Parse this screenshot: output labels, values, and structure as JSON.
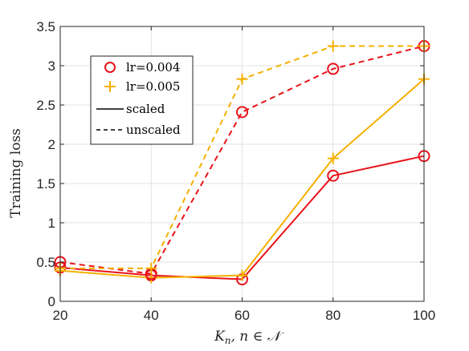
{
  "chart_data": {
    "type": "line",
    "title": "",
    "xlabel": "K_n, n ∈ N",
    "ylabel": "Training loss",
    "x": [
      20,
      40,
      60,
      80,
      100
    ],
    "xlim": [
      20,
      100
    ],
    "ylim": [
      0,
      3.5
    ],
    "xticks": [
      "20",
      "40",
      "60",
      "80",
      "100"
    ],
    "yticks": [
      "0",
      "0.5",
      "1",
      "1.5",
      "2",
      "2.5",
      "3",
      "3.5"
    ],
    "grid": true,
    "legend_position": "top-left",
    "legend": {
      "entries": [
        {
          "label": "lr=0.004",
          "marker": "circle",
          "color": "#e8141b"
        },
        {
          "label": "lr=0.005",
          "marker": "plus",
          "color": "#f5b000"
        },
        {
          "label": "scaled",
          "line": "solid",
          "color": "#000000"
        },
        {
          "label": "unscaled",
          "line": "dashed",
          "color": "#000000"
        }
      ]
    },
    "series": [
      {
        "lr": "lr=0.004",
        "style": "scaled",
        "color": "#e8141b",
        "marker": "circle",
        "dashed": false,
        "values": [
          0.43,
          0.33,
          0.28,
          1.6,
          1.85
        ]
      },
      {
        "lr": "lr=0.005",
        "style": "scaled",
        "color": "#f5b000",
        "marker": "plus",
        "dashed": false,
        "values": [
          0.39,
          0.3,
          0.33,
          1.82,
          2.83
        ]
      },
      {
        "lr": "lr=0.004",
        "style": "unscaled",
        "color": "#e8141b",
        "marker": "circle",
        "dashed": true,
        "values": [
          0.5,
          0.35,
          2.41,
          2.96,
          3.25
        ]
      },
      {
        "lr": "lr=0.005",
        "style": "unscaled",
        "color": "#f5b000",
        "marker": "plus",
        "dashed": true,
        "values": [
          0.42,
          0.42,
          2.83,
          3.25,
          3.25
        ]
      }
    ]
  }
}
